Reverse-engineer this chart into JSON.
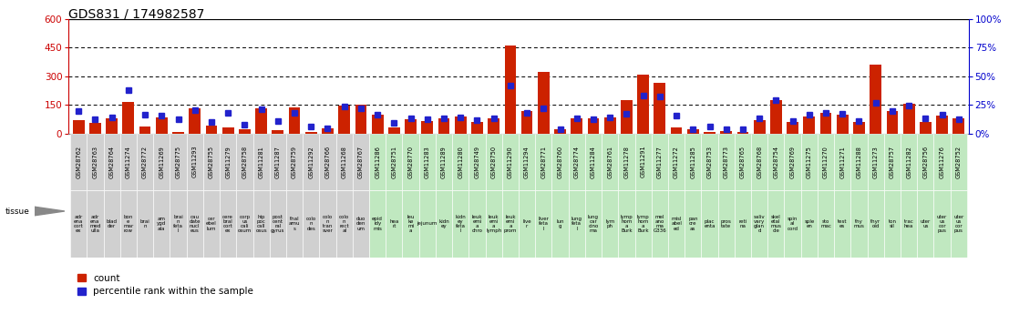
{
  "title": "GDS831 / 174982587",
  "gsm_ids": [
    "GSM28762",
    "GSM28763",
    "GSM28764",
    "GSM11274",
    "GSM28772",
    "GSM11269",
    "GSM28775",
    "GSM11293",
    "GSM28755",
    "GSM11279",
    "GSM28758",
    "GSM11281",
    "GSM11287",
    "GSM28759",
    "GSM11292",
    "GSM28766",
    "GSM11268",
    "GSM28767",
    "GSM11286",
    "GSM28751",
    "GSM28770",
    "GSM11283",
    "GSM11289",
    "GSM11280",
    "GSM28749",
    "GSM28750",
    "GSM11290",
    "GSM11294",
    "GSM28771",
    "GSM28760",
    "GSM28774",
    "GSM11284",
    "GSM28761",
    "GSM11278",
    "GSM11291",
    "GSM11277",
    "GSM11272",
    "GSM11285",
    "GSM28753",
    "GSM28773",
    "GSM28765",
    "GSM28768",
    "GSM28754",
    "GSM28769",
    "GSM11275",
    "GSM11270",
    "GSM11271",
    "GSM11288",
    "GSM11273",
    "GSM28757",
    "GSM11282",
    "GSM28756",
    "GSM11276",
    "GSM28752"
  ],
  "tissue_lines": [
    [
      "adr",
      "ena",
      "cort",
      "ex"
    ],
    [
      "adr",
      "ena",
      "med",
      "ulla"
    ],
    [
      "blad",
      "der"
    ],
    [
      "bon",
      "e",
      "mar",
      "row"
    ],
    [
      "brai",
      "n"
    ],
    [
      "am",
      "ygd",
      "ala"
    ],
    [
      "brai",
      "n",
      "feta",
      "l"
    ],
    [
      "cau",
      "date",
      "nucl",
      "eus"
    ],
    [
      "cer",
      "ebel",
      "lum"
    ],
    [
      "cere",
      "bral",
      "cort",
      "ex"
    ],
    [
      "corp",
      "us",
      "cali",
      "osum"
    ],
    [
      "hip",
      "poc",
      "call",
      "osus"
    ],
    [
      "post",
      "cent",
      "ral",
      "gyrus"
    ],
    [
      "thal",
      "amu",
      "s"
    ],
    [
      "colo",
      "n",
      "des"
    ],
    [
      "colo",
      "n",
      "tran",
      "sver"
    ],
    [
      "colo",
      "n",
      "rect",
      "al"
    ],
    [
      "duo",
      "den",
      "um"
    ],
    [
      "epid",
      "idy",
      "mis"
    ],
    [
      "hea",
      "rt"
    ],
    [
      "leu",
      "ke",
      "mi",
      "a"
    ],
    [
      "jejunum"
    ],
    [
      "kidn",
      "ey"
    ],
    [
      "kidn",
      "ey",
      "feta",
      "l"
    ],
    [
      "leuk",
      "emi",
      "a",
      "chro"
    ],
    [
      "leuk",
      "emi",
      "a",
      "lymph"
    ],
    [
      "leuk",
      "emi",
      "a",
      "prom"
    ],
    [
      "live",
      "r"
    ],
    [
      "liver",
      "feta",
      "l"
    ],
    [
      "lun",
      "g"
    ],
    [
      "lung",
      "feta",
      "l"
    ],
    [
      "lung",
      "car",
      "cino",
      "ma"
    ],
    [
      "lym",
      "ph"
    ],
    [
      "lymp",
      "hom",
      "a",
      "Burk"
    ],
    [
      "lymp",
      "hom",
      "a",
      "Burk"
    ],
    [
      "mel",
      "ano",
      "ma",
      "G336"
    ],
    [
      "misl",
      "abel",
      "ed"
    ],
    [
      "pan",
      "cre",
      "as"
    ],
    [
      "plac",
      "enta"
    ],
    [
      "pros",
      "tate"
    ],
    [
      "reti",
      "na"
    ],
    [
      "saliv",
      "vary",
      "glan",
      "d"
    ],
    [
      "skel",
      "etal",
      "mus",
      "cle"
    ],
    [
      "spin",
      "al",
      "cord"
    ],
    [
      "sple",
      "en"
    ],
    [
      "sto",
      "mac"
    ],
    [
      "test",
      "es"
    ],
    [
      "thy",
      "mus"
    ],
    [
      "thyr",
      "oid"
    ],
    [
      "ton",
      "sil"
    ],
    [
      "trac",
      "hea"
    ],
    [
      "uter",
      "us"
    ],
    [
      "uter",
      "us",
      "cor",
      "pus"
    ],
    [
      "uter",
      "us",
      "cor",
      "pus"
    ]
  ],
  "counts": [
    70,
    55,
    80,
    165,
    35,
    85,
    10,
    130,
    40,
    30,
    20,
    130,
    15,
    135,
    10,
    25,
    145,
    150,
    100,
    30,
    75,
    65,
    80,
    90,
    60,
    80,
    460,
    115,
    320,
    20,
    80,
    80,
    85,
    175,
    310,
    265,
    30,
    20,
    10,
    12,
    10,
    70,
    175,
    60,
    90,
    110,
    100,
    60,
    360,
    115,
    155,
    60,
    95,
    80
  ],
  "percentiles_left": [
    115,
    75,
    85,
    225,
    100,
    95,
    75,
    120,
    60,
    110,
    45,
    125,
    65,
    110,
    35,
    25,
    140,
    130,
    100,
    55,
    80,
    75,
    80,
    85,
    70,
    80,
    250,
    110,
    130,
    20,
    80,
    75,
    85,
    105,
    200,
    195,
    95,
    20,
    35,
    20,
    20,
    80,
    175,
    65,
    100,
    110,
    105,
    65,
    160,
    115,
    145,
    80,
    100,
    75
  ],
  "bg_gray": "#d0d0d0",
  "bg_green": "#c0e8c0",
  "gray_count": 18,
  "ylim_left": [
    0,
    600
  ],
  "ylim_right": [
    0,
    100
  ],
  "yticks_left": [
    0,
    150,
    300,
    450,
    600
  ],
  "yticks_right": [
    0,
    25,
    50,
    75,
    100
  ],
  "left_tick_color": "#cc0000",
  "right_tick_color": "#0000cc",
  "bar_color": "#cc2200",
  "dot_color": "#2222cc",
  "title_fontsize": 10,
  "gsm_fontsize": 4.8,
  "tissue_fontsize": 4.0,
  "legend_fontsize": 7.5
}
